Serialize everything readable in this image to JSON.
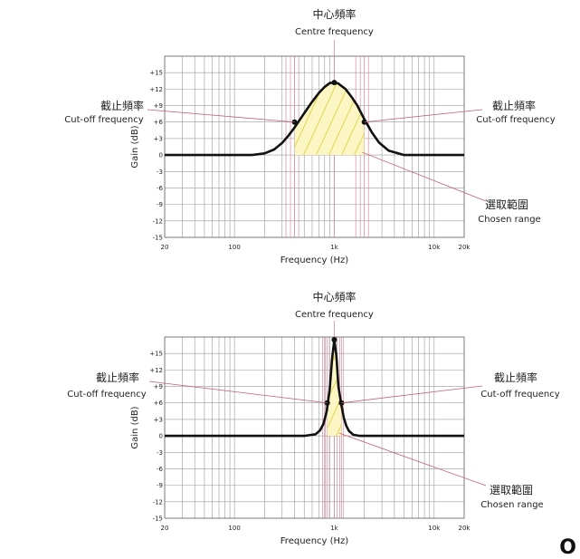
{
  "chart_data": [
    {
      "type": "line",
      "title": "",
      "xlabel": "Frequency (Hz)",
      "ylabel": "Gain (dB)",
      "x_scale": "log",
      "xlim": [
        20,
        20000
      ],
      "ylim": [
        -15,
        18
      ],
      "x_ticks": [
        {
          "value": 20,
          "label": "20"
        },
        {
          "value": 100,
          "label": "100"
        },
        {
          "value": 1000,
          "label": "1k"
        },
        {
          "value": 10000,
          "label": "10k"
        },
        {
          "value": 20000,
          "label": "20k"
        }
      ],
      "y_ticks": [
        {
          "value": 15,
          "label": "+15"
        },
        {
          "value": 12,
          "label": "+12"
        },
        {
          "value": 9,
          "label": "+9"
        },
        {
          "value": 6,
          "label": "+6"
        },
        {
          "value": 3,
          "label": "+3"
        },
        {
          "value": 0,
          "label": "0"
        },
        {
          "value": -3,
          "label": "-3"
        },
        {
          "value": -6,
          "label": "-6"
        },
        {
          "value": -9,
          "label": "-9"
        },
        {
          "value": -12,
          "label": "-12"
        },
        {
          "value": -15,
          "label": "-15"
        }
      ],
      "grid": true,
      "series": [
        {
          "x": [
            20,
            100,
            150,
            200,
            250,
            300,
            350,
            400,
            500,
            600,
            700,
            800,
            900,
            1000,
            1100,
            1300,
            1500,
            1700,
            2000,
            2400,
            2800,
            3500,
            5000,
            10000,
            20000
          ],
          "y": [
            0,
            0,
            0,
            0.3,
            1,
            2.2,
            3.6,
            5,
            7.6,
            9.7,
            11.3,
            12.4,
            13.1,
            13.2,
            13.0,
            12.0,
            10.5,
            9.0,
            6.5,
            4.0,
            2.3,
            0.8,
            0,
            0,
            0
          ]
        }
      ],
      "centre": {
        "x": 1000,
        "y": 13.2
      },
      "cutoffs": [
        {
          "x": 400,
          "y": 6
        },
        {
          "x": 2000,
          "y": 6
        }
      ],
      "chosen_range": [
        400,
        2000
      ],
      "annotations": {
        "centre_zh": "中心頻率",
        "centre_en": "Centre frequency",
        "cutoff_left_zh": "截止頻率",
        "cutoff_left_en": "Cut-off frequency",
        "cutoff_right_zh": "截止頻率",
        "cutoff_right_en": "Cut-off frequency",
        "range_zh": "選取範圍",
        "range_en": "Chosen range"
      }
    },
    {
      "type": "line",
      "title": "",
      "xlabel": "Frequency (Hz)",
      "ylabel": "Gain (dB)",
      "x_scale": "log",
      "xlim": [
        20,
        20000
      ],
      "ylim": [
        -15,
        18
      ],
      "x_ticks": [
        {
          "value": 20,
          "label": "20"
        },
        {
          "value": 100,
          "label": "100"
        },
        {
          "value": 1000,
          "label": "1k"
        },
        {
          "value": 10000,
          "label": "10k"
        },
        {
          "value": 20000,
          "label": "20k"
        }
      ],
      "y_ticks": [
        {
          "value": 15,
          "label": "+15"
        },
        {
          "value": 12,
          "label": "+12"
        },
        {
          "value": 9,
          "label": "+9"
        },
        {
          "value": 6,
          "label": "+6"
        },
        {
          "value": 3,
          "label": "+3"
        },
        {
          "value": 0,
          "label": "0"
        },
        {
          "value": -3,
          "label": "-3"
        },
        {
          "value": -6,
          "label": "-6"
        },
        {
          "value": -9,
          "label": "-9"
        },
        {
          "value": -12,
          "label": "-12"
        },
        {
          "value": -15,
          "label": "-15"
        }
      ],
      "grid": true,
      "series": [
        {
          "x": [
            20,
            500,
            650,
            720,
            780,
            840,
            900,
            950,
            1000,
            1050,
            1100,
            1180,
            1250,
            1320,
            1400,
            1550,
            1800,
            20000
          ],
          "y": [
            0,
            0,
            0.3,
            1.0,
            2.2,
            4.5,
            8.5,
            14.0,
            17.5,
            14.5,
            9.0,
            5.5,
            3.2,
            1.8,
            0.9,
            0.2,
            0,
            0
          ]
        }
      ],
      "centre": {
        "x": 1000,
        "y": 17.5
      },
      "cutoffs": [
        {
          "x": 850,
          "y": 6
        },
        {
          "x": 1180,
          "y": 6
        }
      ],
      "chosen_range": [
        850,
        1180
      ],
      "annotations": {
        "centre_zh": "中心頻率",
        "centre_en": "Centre frequency",
        "cutoff_left_zh": "截止頻率",
        "cutoff_left_en": "Cut-off frequency",
        "cutoff_right_zh": "截止頻率",
        "cutoff_right_en": "Cut-off frequency",
        "range_zh": "選取範圍",
        "range_en": "Chosen range"
      }
    }
  ],
  "corner_text": "O"
}
